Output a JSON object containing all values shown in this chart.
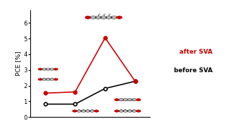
{
  "x": [
    1,
    2,
    3,
    4
  ],
  "before_sva": [
    0.82,
    0.82,
    1.82,
    2.28
  ],
  "after_sva": [
    1.52,
    1.6,
    5.05,
    2.28
  ],
  "ylim": [
    0,
    6.8
  ],
  "yticks": [
    0,
    1,
    2,
    3,
    4,
    5,
    6
  ],
  "ylabel": "PCE [%]",
  "before_color": "#000000",
  "after_color": "#cc0000",
  "background_color": "#ffffff",
  "label_before": "before SVA",
  "label_after": "after SVA",
  "xlim": [
    0.5,
    4.5
  ],
  "figsize": [
    3.36,
    1.89
  ],
  "dpi": 100,
  "mol_dark": "#1a1a1a",
  "mol_red": "#cc0000"
}
